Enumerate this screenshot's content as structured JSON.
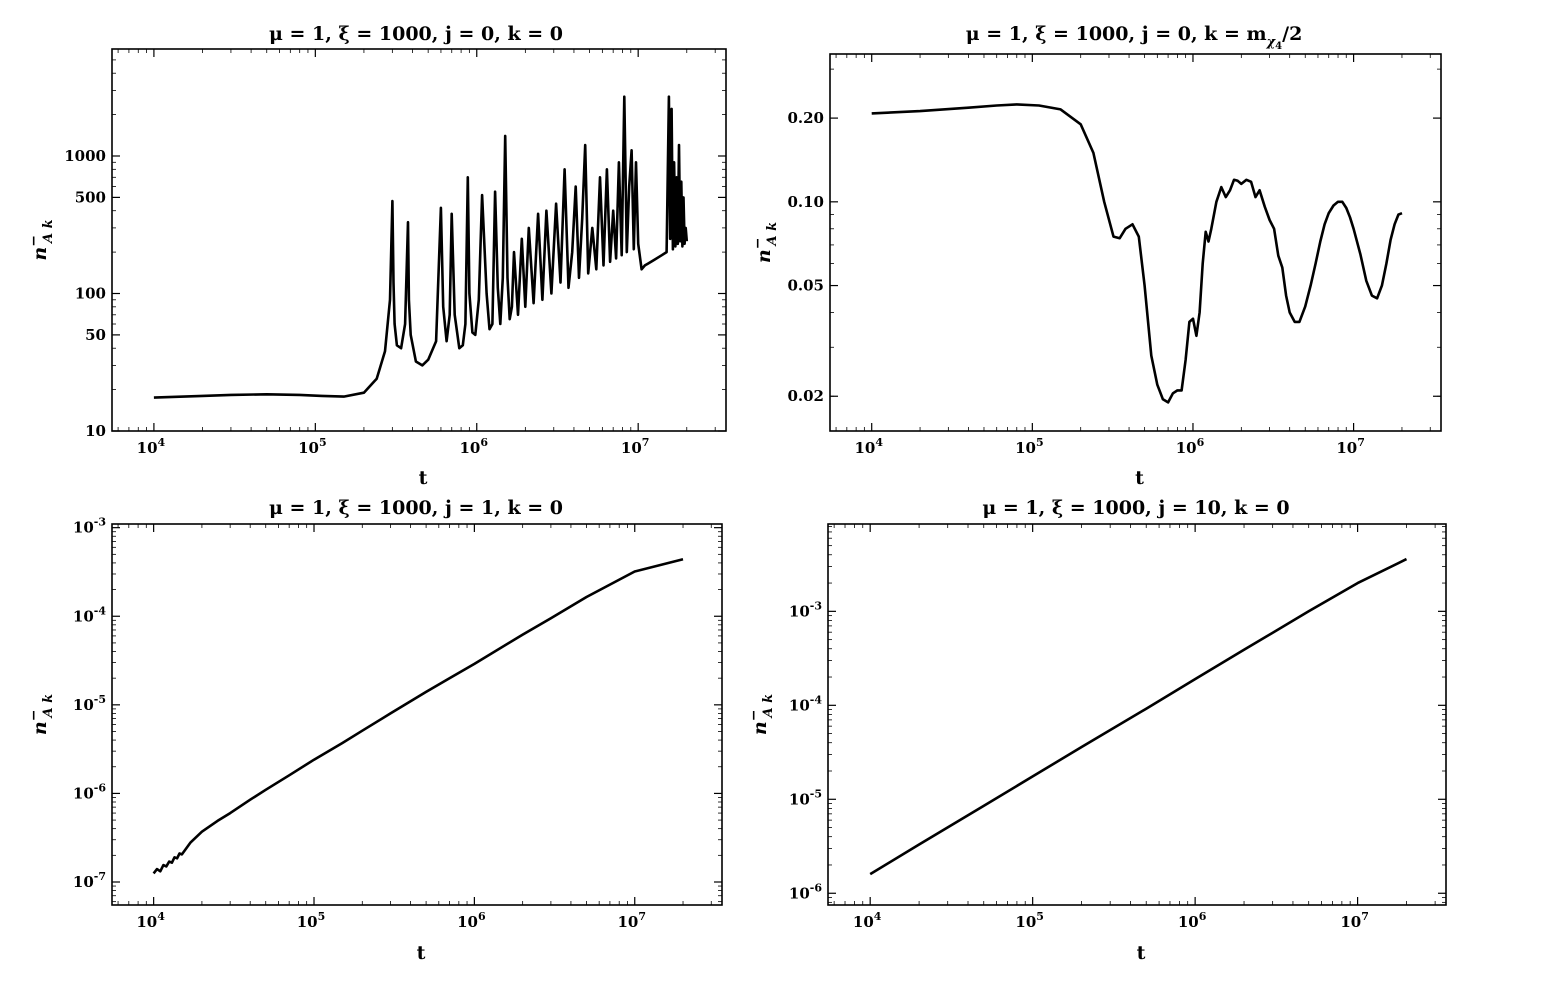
{
  "chart_data": [
    {
      "type": "line",
      "title": "μ = 1, ξ = 1000, j = 0, k = 0",
      "xlabel": "t",
      "ylabel": "n⁻_{A k}",
      "xscale": "log",
      "yscale": "log",
      "xlim": [
        5500,
        35000000
      ],
      "ylim": [
        10,
        6000
      ],
      "x_ticks": [
        {
          "v": 10000,
          "e": "4"
        },
        {
          "v": 100000,
          "e": "5"
        },
        {
          "v": 1000000,
          "e": "6"
        },
        {
          "v": 10000000,
          "e": "7"
        }
      ],
      "y_ticks": [
        {
          "v": 10,
          "label": "10"
        },
        {
          "v": 50,
          "label": "50"
        },
        {
          "v": 100,
          "label": "100"
        },
        {
          "v": 500,
          "label": "500"
        },
        {
          "v": 1000,
          "label": "1000"
        }
      ],
      "grid": false,
      "series": [
        {
          "color": "#000000",
          "x": [
            10000,
            20000,
            30000,
            50000,
            80000,
            110000,
            150000,
            200000,
            240000,
            270000,
            290000,
            300000,
            305000,
            310000,
            320000,
            340000,
            360000,
            375000,
            380000,
            390000,
            420000,
            460000,
            500000,
            560000,
            600000,
            620000,
            650000,
            680000,
            700000,
            730000,
            780000,
            820000,
            850000,
            880000,
            900000,
            940000,
            980000,
            1030000,
            1080000,
            1150000,
            1200000,
            1250000,
            1300000,
            1350000,
            1400000,
            1450000,
            1500000,
            1550000,
            1600000,
            1650000,
            1700000,
            1800000,
            1900000,
            2000000,
            2100000,
            2250000,
            2400000,
            2550000,
            2700000,
            2900000,
            3100000,
            3300000,
            3500000,
            3700000,
            3900000,
            4100000,
            4300000,
            4500000,
            4700000,
            4900000,
            5200000,
            5500000,
            5800000,
            6100000,
            6400000,
            6700000,
            7000000,
            7300000,
            7600000,
            7900000,
            8200000,
            8500000,
            8800000,
            9100000,
            9400000,
            9700000,
            10000000,
            10500000,
            11000000,
            11500000,
            12500000,
            14000000,
            15000000,
            15500000,
            15800000,
            16100000,
            16400000,
            16700000,
            17000000,
            17300000,
            17600000,
            17900000,
            18200000,
            18500000,
            18800000,
            19100000,
            19400000,
            19700000,
            20000000
          ],
          "y": [
            17.5,
            18,
            18.3,
            18.5,
            18.3,
            18,
            17.8,
            19,
            24,
            38,
            90,
            470,
            120,
            60,
            42,
            40,
            60,
            330,
            90,
            50,
            32,
            30,
            33,
            45,
            420,
            80,
            45,
            70,
            380,
            70,
            40,
            42,
            60,
            700,
            100,
            52,
            50,
            90,
            520,
            100,
            55,
            60,
            550,
            110,
            60,
            130,
            1400,
            130,
            65,
            80,
            200,
            70,
            250,
            80,
            300,
            85,
            380,
            90,
            400,
            100,
            450,
            120,
            800,
            110,
            200,
            600,
            130,
            350,
            1200,
            140,
            300,
            150,
            700,
            160,
            800,
            170,
            400,
            180,
            900,
            190,
            2700,
            200,
            600,
            1100,
            210,
            900,
            230,
            150,
            160,
            165,
            175,
            190,
            200,
            2700,
            250,
            2200,
            210,
            900,
            220,
            700,
            230,
            1200,
            240,
            650,
            220,
            500,
            230,
            300,
            240
          ]
        }
      ]
    },
    {
      "type": "line",
      "title": "μ = 1, ξ = 1000, j = 0, k = m",
      "title_sub": "χ",
      "title_subsub": "4",
      "title_suffix": "/2",
      "xlabel": "t",
      "ylabel": "n⁻_{A k}",
      "xscale": "log",
      "yscale": "log",
      "xlim": [
        5500,
        35000000
      ],
      "ylim": [
        0.015,
        0.34
      ],
      "x_ticks": [
        {
          "v": 10000,
          "e": "4"
        },
        {
          "v": 100000,
          "e": "5"
        },
        {
          "v": 1000000,
          "e": "6"
        },
        {
          "v": 10000000,
          "e": "7"
        }
      ],
      "y_ticks": [
        {
          "v": 0.02,
          "label": "0.02"
        },
        {
          "v": 0.05,
          "label": "0.05"
        },
        {
          "v": 0.1,
          "label": "0.10"
        },
        {
          "v": 0.2,
          "label": "0.20"
        }
      ],
      "grid": false,
      "series": [
        {
          "color": "#000000",
          "x": [
            10000,
            20000,
            40000,
            60000,
            80000,
            110000,
            150000,
            200000,
            240000,
            280000,
            320000,
            350000,
            380000,
            420000,
            460000,
            500000,
            550000,
            600000,
            650000,
            700000,
            750000,
            800000,
            850000,
            900000,
            950000,
            1000000,
            1050000,
            1100000,
            1150000,
            1200000,
            1250000,
            1300000,
            1400000,
            1500000,
            1600000,
            1700000,
            1800000,
            1900000,
            2000000,
            2150000,
            2300000,
            2450000,
            2600000,
            2800000,
            3000000,
            3200000,
            3400000,
            3600000,
            3800000,
            4000000,
            4300000,
            4600000,
            5000000,
            5400000,
            5800000,
            6200000,
            6600000,
            7000000,
            7500000,
            8000000,
            8500000,
            9000000,
            9500000,
            10000000,
            11000000,
            12000000,
            13000000,
            14000000,
            15000000,
            16000000,
            17000000,
            18000000,
            19000000,
            20000000
          ],
          "y": [
            0.208,
            0.212,
            0.218,
            0.222,
            0.224,
            0.222,
            0.215,
            0.19,
            0.15,
            0.1,
            0.075,
            0.074,
            0.08,
            0.083,
            0.075,
            0.05,
            0.028,
            0.022,
            0.0195,
            0.019,
            0.0205,
            0.021,
            0.021,
            0.027,
            0.037,
            0.038,
            0.033,
            0.04,
            0.06,
            0.078,
            0.072,
            0.08,
            0.1,
            0.113,
            0.104,
            0.11,
            0.12,
            0.119,
            0.116,
            0.12,
            0.118,
            0.104,
            0.11,
            0.096,
            0.086,
            0.08,
            0.064,
            0.058,
            0.046,
            0.04,
            0.037,
            0.037,
            0.042,
            0.05,
            0.06,
            0.072,
            0.083,
            0.091,
            0.097,
            0.1,
            0.1,
            0.095,
            0.088,
            0.08,
            0.065,
            0.052,
            0.046,
            0.045,
            0.05,
            0.06,
            0.073,
            0.083,
            0.09,
            0.091
          ]
        }
      ]
    },
    {
      "type": "line",
      "title": "μ = 1, ξ = 1000, j = 1, k = 0",
      "xlabel": "t",
      "ylabel": "n⁻_{A k}",
      "xscale": "log",
      "yscale": "log",
      "xlim": [
        5500,
        35000000
      ],
      "ylim": [
        5.5e-08,
        0.0011
      ],
      "x_ticks": [
        {
          "v": 10000,
          "e": "4"
        },
        {
          "v": 100000,
          "e": "5"
        },
        {
          "v": 1000000,
          "e": "6"
        },
        {
          "v": 10000000,
          "e": "7"
        }
      ],
      "y_ticks": [
        {
          "v": 1e-07,
          "e": "-7"
        },
        {
          "v": 1e-06,
          "e": "-6"
        },
        {
          "v": 1e-05,
          "e": "-5"
        },
        {
          "v": 0.0001,
          "e": "-4"
        },
        {
          "v": 0.001,
          "e": "-3"
        }
      ],
      "grid": false,
      "series": [
        {
          "color": "#000000",
          "x": [
            10000,
            10500,
            11000,
            11500,
            12000,
            12500,
            13000,
            13500,
            14000,
            14500,
            15000,
            17000,
            20000,
            25000,
            30000,
            40000,
            50000,
            70000,
            100000,
            150000,
            200000,
            300000,
            500000,
            700000,
            1000000,
            2000000,
            3000000,
            5000000,
            10000000,
            20000000
          ],
          "y": [
            1.25e-07,
            1.4e-07,
            1.32e-07,
            1.55e-07,
            1.5e-07,
            1.7e-07,
            1.65e-07,
            1.9e-07,
            1.85e-07,
            2.1e-07,
            2.05e-07,
            2.8e-07,
            3.7e-07,
            4.9e-07,
            6e-07,
            8.5e-07,
            1.1e-06,
            1.6e-06,
            2.4e-06,
            3.7e-06,
            5.1e-06,
            8e-06,
            1.4e-05,
            2e-05,
            2.9e-05,
            6.2e-05,
            9.5e-05,
            0.000165,
            0.00032,
            0.00044
          ]
        }
      ]
    },
    {
      "type": "line",
      "title": "μ = 1, ξ = 1000, j = 10, k = 0",
      "xlabel": "t",
      "ylabel": "n⁻_{A k}",
      "xscale": "log",
      "yscale": "log",
      "xlim": [
        5500,
        35000000
      ],
      "ylim": [
        7.5e-07,
        0.0085
      ],
      "x_ticks": [
        {
          "v": 10000,
          "e": "4"
        },
        {
          "v": 100000,
          "e": "5"
        },
        {
          "v": 1000000,
          "e": "6"
        },
        {
          "v": 10000000,
          "e": "7"
        }
      ],
      "y_ticks": [
        {
          "v": 1e-06,
          "e": "-6"
        },
        {
          "v": 1e-05,
          "e": "-5"
        },
        {
          "v": 0.0001,
          "e": "-4"
        },
        {
          "v": 0.001,
          "e": "-3"
        }
      ],
      "grid": false,
      "series": [
        {
          "color": "#000000",
          "x": [
            10000,
            20000,
            50000,
            100000,
            200000,
            500000,
            1000000,
            2000000,
            5000000,
            10000000,
            20000000
          ],
          "y": [
            1.6e-06,
            3.3e-06,
            8.5e-06,
            1.75e-05,
            3.6e-05,
            9.2e-05,
            0.00019,
            0.00039,
            0.001,
            0.002,
            0.0036
          ]
        }
      ]
    }
  ]
}
